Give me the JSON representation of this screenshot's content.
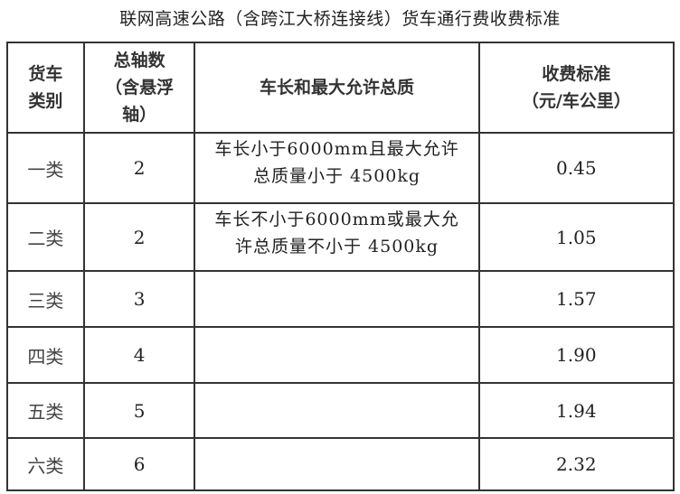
{
  "title": "联网高速公路（含跨江大桥连接线）货车通行费收费标准",
  "headers": [
    "货车\n类别",
    "总轴数\n（含悬浮\n轴）",
    "车长和最大允许总质",
    "收费标准\n（元/车公里）"
  ],
  "rows": [
    {
      "class": "一类",
      "axles": "2",
      "desc_line1": "车长小于6000mm且最大允许",
      "desc_line2": "总质量小于 4500kg",
      "rate": "0.45"
    },
    {
      "class": "二类",
      "axles": "2",
      "desc_line1": "车长不小于6000mm或最大允",
      "desc_line2": "许总质量不小于 4500kg",
      "rate": "1.05"
    },
    {
      "class": "三类",
      "axles": "3",
      "desc_line1": "",
      "desc_line2": "",
      "rate": "1.57"
    },
    {
      "class": "四类",
      "axles": "4",
      "desc_line1": "",
      "desc_line2": "",
      "rate": "1.90"
    },
    {
      "class": "五类",
      "axles": "5",
      "desc_line1": "",
      "desc_line2": "",
      "rate": "1.94"
    },
    {
      "class": "六类",
      "axles": "6",
      "desc_line1": "",
      "desc_line2": "",
      "rate": "2.32"
    }
  ]
}
